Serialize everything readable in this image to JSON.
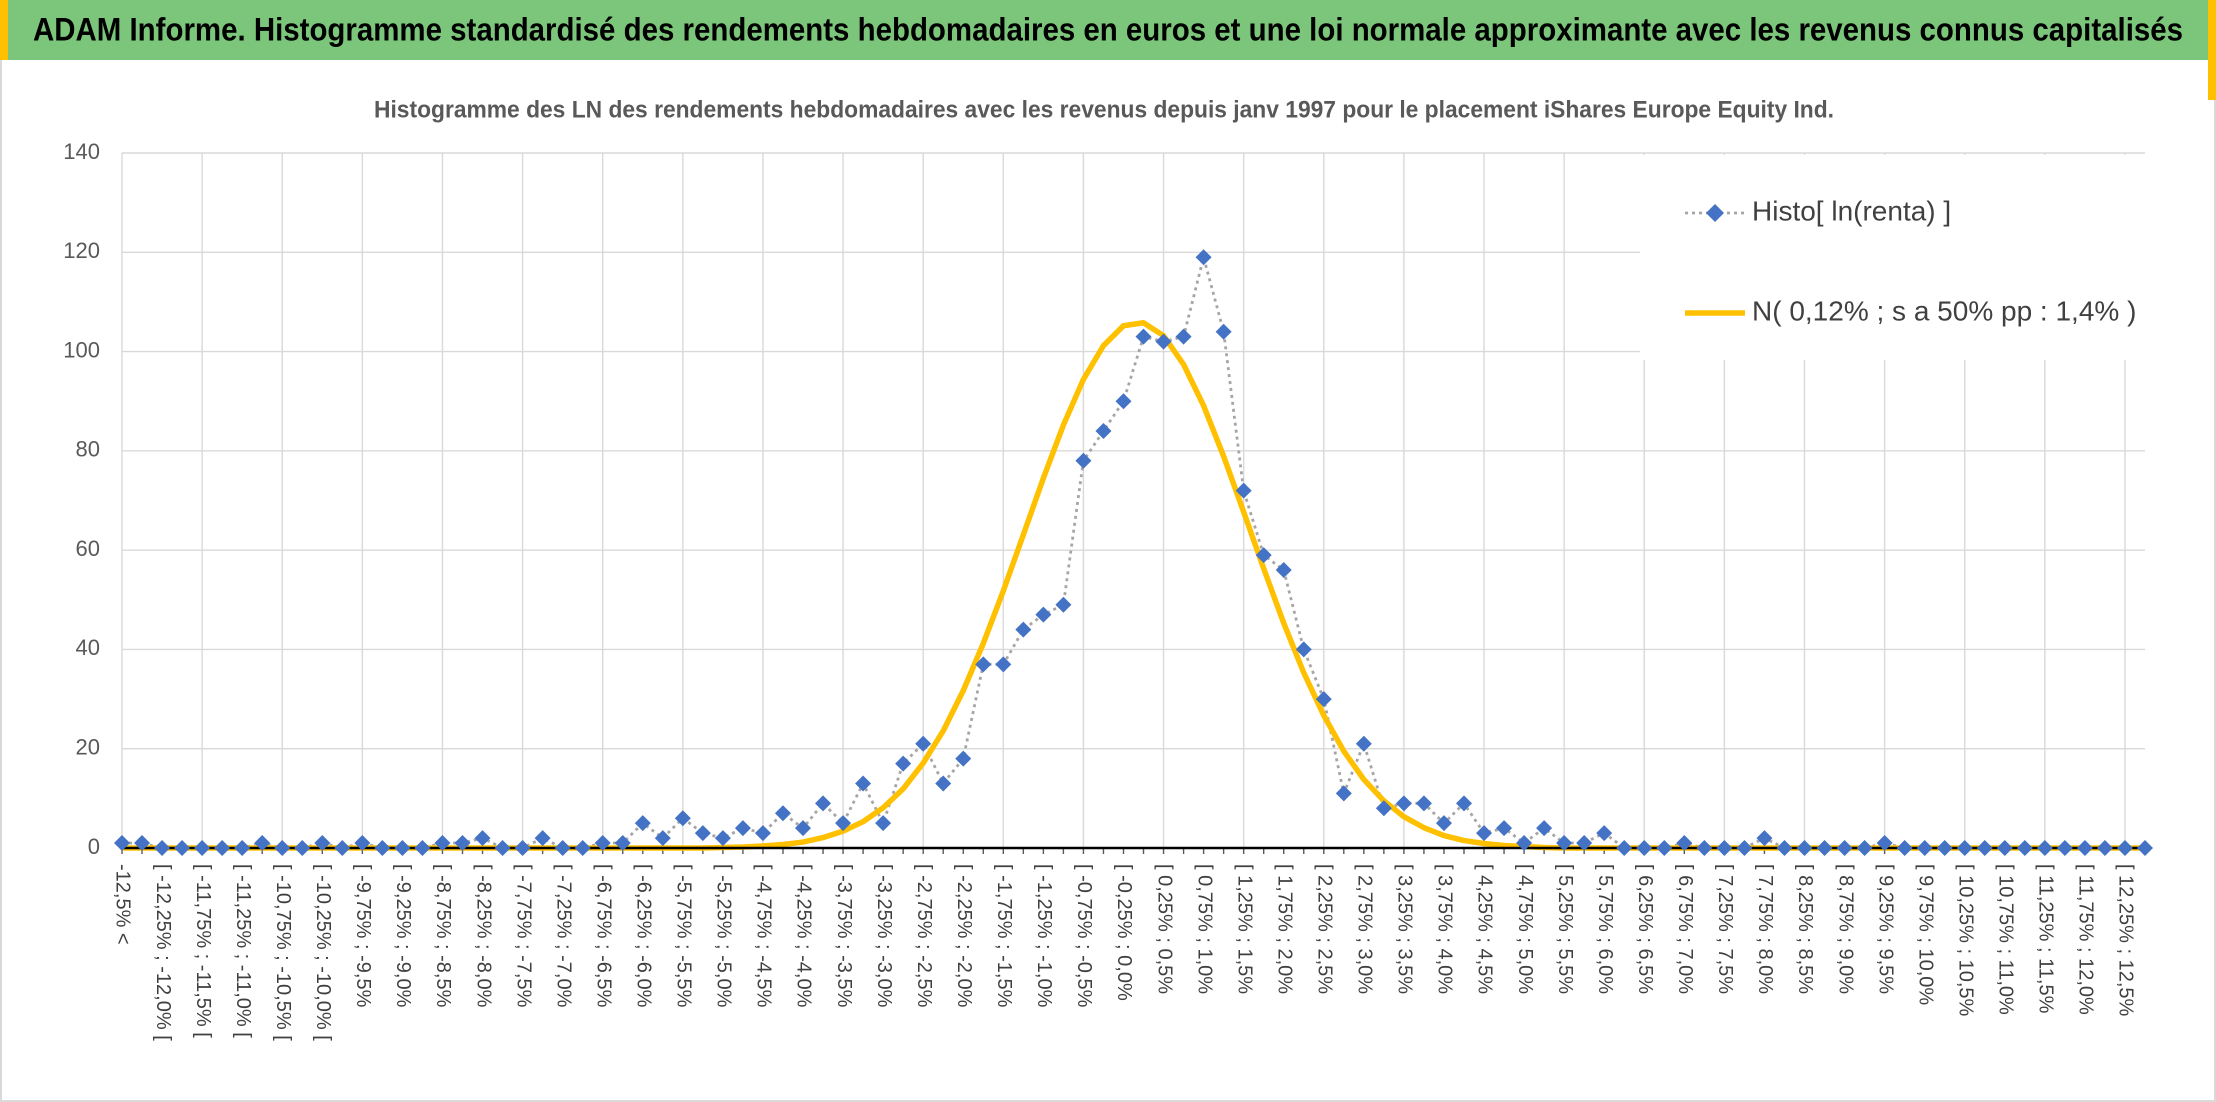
{
  "chart_data": {
    "type": "line",
    "title": "ADAM Informe. Histogramme standardisé des rendements hebdomadaires en euros et une loi normale approximante avec les revenus connus capitalisés",
    "subtitle": "Histogramme des LN des rendements hebdomadaires avec les revenus depuis janv 1997 pour le placement iShares Europe Equity Ind.",
    "categories": [
      "-12,5% <",
      null,
      "[ -12,25% ; -12,0% [",
      null,
      "[ -11,75% ; -11,5% [",
      null,
      "[ -11,25% ; -11,0% [",
      null,
      "[ -10,75% ; -10,5% [",
      null,
      "[ -10,25% ; -10,0% [",
      null,
      "[ -9,75% ; -9,5%",
      null,
      "[ -9,25% ; -9,0%",
      null,
      "[ -8,75% ; -8,5%",
      null,
      "[ -8,25% ; -8,0%",
      null,
      "[ -7,75% ; -7,5%",
      null,
      "[ -7,25% ; -7,0%",
      null,
      "[ -6,75% ; -6,5%",
      null,
      "[ -6,25% ; -6,0%",
      null,
      "[ -5,75% ; -5,5%",
      null,
      "[ -5,25% ; -5,0%",
      null,
      "[ -4,75% ; -4,5%",
      null,
      "[ -4,25% ; -4,0%",
      null,
      "[ -3,75% ; -3,5%",
      null,
      "[ -3,25% ; -3,0%",
      null,
      "[ -2,75% ; -2,5%",
      null,
      "[ -2,25% ; -2,0%",
      null,
      "[ -1,75% ; -1,5%",
      null,
      "[ -1,25% ; -1,0%",
      null,
      "[ -0,75% ; -0,5%",
      null,
      "[ -0,25% ; 0,0%",
      null,
      "[ 0,25% ; 0,5%",
      null,
      "[ 0,75% ; 1,0%",
      null,
      "[ 1,25% ; 1,5%",
      null,
      "[ 1,75% ; 2,0%",
      null,
      "[ 2,25% ; 2,5%",
      null,
      "[ 2,75% ; 3,0%",
      null,
      "[ 3,25% ; 3,5%",
      null,
      "[ 3,75% ; 4,0%",
      null,
      "[ 4,25% ; 4,5%",
      null,
      "[ 4,75% ; 5,0%",
      null,
      "[ 5,25% ; 5,5%",
      null,
      "[ 5,75% ; 6,0%",
      null,
      "[ 6,25% ; 6,5%",
      null,
      "[ 6,75% ; 7,0%",
      null,
      "[ 7,25% ; 7,5%",
      null,
      "[ 7,75% ; 8,0%",
      null,
      "[ 8,25% ; 8,5%",
      null,
      "[ 8,75% ; 9,0%",
      null,
      "[ 9,25% ; 9,5%",
      null,
      "[ 9,75% ; 10,0%",
      null,
      "[ 10,25% ; 10,5%",
      null,
      "[ 10,75% ; 11,0%",
      null,
      "[ 11,25% ; 11,5%",
      null,
      "[ 11,75% ; 12,0%",
      null,
      "[ 12,25% ; 12,5%",
      null
    ],
    "series": [
      {
        "name": "Histo[ ln(renta) ]",
        "color": "#4472c4",
        "marker": "diamond",
        "line": "dotted",
        "line_color": "#a6a6a6",
        "values": [
          1,
          1,
          0,
          0,
          0,
          0,
          0,
          1,
          0,
          0,
          1,
          0,
          1,
          0,
          0,
          0,
          1,
          1,
          2,
          0,
          0,
          2,
          0,
          0,
          1,
          1,
          5,
          2,
          6,
          3,
          2,
          4,
          3,
          7,
          4,
          9,
          5,
          13,
          5,
          17,
          21,
          13,
          18,
          37,
          37,
          44,
          47,
          49,
          78,
          84,
          90,
          103,
          102,
          103,
          119,
          104,
          72,
          59,
          56,
          40,
          30,
          11,
          21,
          8,
          9,
          9,
          5,
          9,
          3,
          4,
          1,
          4,
          1,
          1,
          3,
          0,
          0,
          0,
          1,
          0,
          0,
          0,
          2,
          0,
          0,
          0,
          0,
          0,
          1,
          0,
          0,
          0,
          0,
          0,
          0,
          0,
          0,
          0,
          0,
          0,
          0,
          0
        ]
      },
      {
        "name": "N( 0,12% ; s a 50% pp : 1,4% )",
        "color": "#ffc000",
        "line": "solid",
        "values": [
          0,
          0,
          0,
          0,
          0,
          0,
          0,
          0,
          0,
          0,
          0,
          0,
          0,
          0,
          0,
          0,
          0,
          0,
          0,
          0,
          0,
          0,
          0,
          0,
          0,
          0,
          0,
          0,
          0,
          0,
          0.1,
          0.2,
          0.4,
          0.7,
          1.2,
          2.1,
          3.4,
          5.3,
          8.1,
          11.9,
          17.1,
          23.6,
          31.7,
          41.2,
          51.8,
          63.1,
          74.5,
          85.2,
          94.4,
          101.2,
          105.2,
          105.8,
          103.2,
          97.4,
          89.1,
          78.9,
          67.7,
          56.3,
          45.3,
          35.3,
          26.7,
          19.5,
          13.8,
          9.5,
          6.3,
          4.1,
          2.5,
          1.5,
          0.9,
          0.5,
          0.3,
          0.1,
          0,
          0,
          0,
          0,
          0,
          0,
          0,
          0,
          0,
          0,
          0,
          0,
          0,
          0,
          0,
          0,
          0,
          0,
          0,
          0,
          0,
          0,
          0,
          0,
          0,
          0,
          0,
          0,
          0,
          0
        ]
      }
    ],
    "ylim": [
      0,
      140
    ],
    "yticks": [
      0,
      20,
      40,
      60,
      80,
      100,
      120,
      140
    ],
    "grid": true,
    "legend": "upper-right"
  }
}
